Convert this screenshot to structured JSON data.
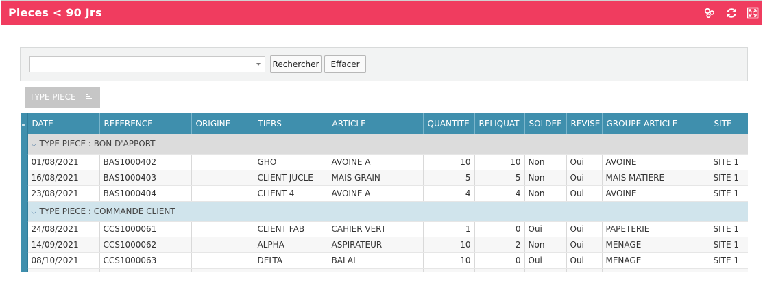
{
  "window": {
    "title": "Pieces < 90 Jrs",
    "icons": [
      "settings-cluster-icon",
      "refresh-icon",
      "maximize-icon"
    ]
  },
  "search": {
    "combo_value": "",
    "search_button": "Rechercher",
    "clear_button": "Effacer"
  },
  "grouping": {
    "chip_label": "TYPE PIECE"
  },
  "table": {
    "columns": [
      "DATE",
      "REFERENCE",
      "ORIGINE",
      "TIERS",
      "ARTICLE",
      "QUANTITE",
      "RELIQUAT",
      "SOLDEE",
      "REVISE",
      "GROUPE ARTICLE",
      "SITE"
    ],
    "groups": [
      {
        "label": "TYPE PIECE : BON D'APPORT",
        "rows": [
          [
            "01/08/2021",
            "BAS1000402",
            "",
            "GHO",
            "AVOINE A",
            "10",
            "10",
            "Non",
            "Oui",
            "AVOINE",
            "SITE 1"
          ],
          [
            "16/08/2021",
            "BAS1000403",
            "",
            "CLIENT JUCLE",
            "MAIS GRAIN",
            "5",
            "5",
            "Non",
            "Oui",
            "MAIS MATIERE",
            "SITE 1"
          ],
          [
            "23/08/2021",
            "BAS1000404",
            "",
            "CLIENT 4",
            "AVOINE A",
            "4",
            "4",
            "Non",
            "Oui",
            "AVOINE",
            "SITE 1"
          ]
        ]
      },
      {
        "label": "TYPE PIECE : COMMANDE CLIENT",
        "rows": [
          [
            "24/08/2021",
            "CCS1000061",
            "",
            "CLIENT FAB",
            "CAHIER VERT",
            "1",
            "0",
            "Oui",
            "Oui",
            "PAPETERIE",
            "SITE 1"
          ],
          [
            "14/09/2021",
            "CCS1000062",
            "",
            "ALPHA",
            "ASPIRATEUR",
            "10",
            "2",
            "Non",
            "Oui",
            "MENAGE",
            "SITE 1"
          ],
          [
            "08/10/2021",
            "CCS1000063",
            "",
            "DELTA",
            "BALAI",
            "10",
            "0",
            "Oui",
            "Oui",
            "MENAGE",
            "SITE 1"
          ]
        ]
      }
    ]
  },
  "colors": {
    "titlebar": "#f03c5f",
    "header": "#3f8fad"
  }
}
